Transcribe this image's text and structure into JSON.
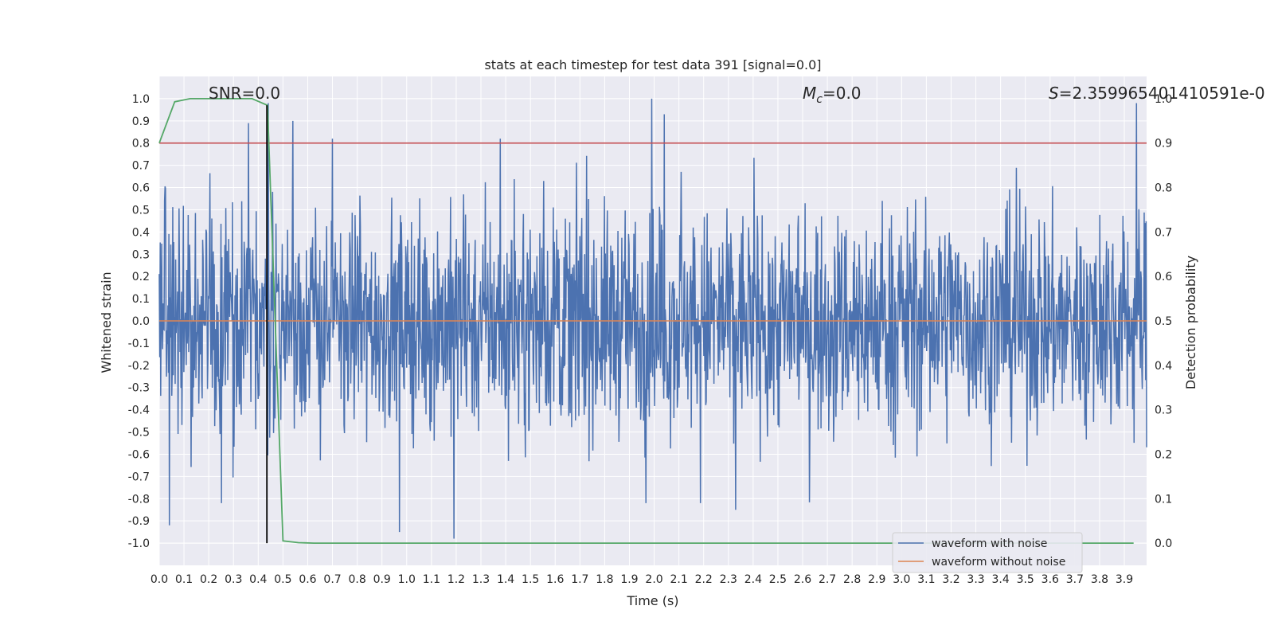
{
  "chart_data": {
    "type": "line",
    "title": "stats at each timestep for test data 391 [signal=0.0]",
    "xlabel": "Time (s)",
    "ylabel_left": "Whitened strain",
    "ylabel_right": "Detection probability",
    "xlim": [
      0.0,
      3.99
    ],
    "ylim_left": [
      -1.1,
      1.1
    ],
    "ylim_right": [
      -0.05,
      1.05
    ],
    "x_ticks": [
      "0.0",
      "0.1",
      "0.2",
      "0.3",
      "0.4",
      "0.5",
      "0.6",
      "0.7",
      "0.8",
      "0.9",
      "1.0",
      "1.1",
      "1.2",
      "1.3",
      "1.4",
      "1.5",
      "1.6",
      "1.7",
      "1.8",
      "1.9",
      "2.0",
      "2.1",
      "2.2",
      "2.3",
      "2.4",
      "2.5",
      "2.6",
      "2.7",
      "2.8",
      "2.9",
      "3.0",
      "3.1",
      "3.2",
      "3.3",
      "3.4",
      "3.5",
      "3.6",
      "3.7",
      "3.8",
      "3.9"
    ],
    "y_ticks_left": [
      "1.0",
      "0.9",
      "0.8",
      "0.7",
      "0.6",
      "0.5",
      "0.4",
      "0.3",
      "0.2",
      "0.1",
      "0.0",
      "-0.1",
      "-0.2",
      "-0.3",
      "-0.4",
      "-0.5",
      "-0.6",
      "-0.7",
      "-0.8",
      "-0.9",
      "-1.0"
    ],
    "y_ticks_right": [
      "1.0",
      "0.9",
      "0.8",
      "0.7",
      "0.6",
      "0.5",
      "0.4",
      "0.3",
      "0.2",
      "0.1",
      "0.0"
    ],
    "annotations": {
      "snr": "SNR=0.0",
      "mc_symbol": "M",
      "mc_sub": "c",
      "mc_value": "=0.0",
      "s_symbol": "S",
      "s_value": "=2.359965401410591e-0"
    },
    "threshold": 0.9,
    "marker_time": 0.435,
    "noisy_waveform": {
      "name": "waveform with noise",
      "color": "#4c72b0",
      "samples": 2048,
      "peaks": [
        {
          "x": 0.36,
          "y": 0.89
        },
        {
          "x": 0.44,
          "y": 0.98
        },
        {
          "x": 0.54,
          "y": 0.9
        },
        {
          "x": 1.99,
          "y": 1.0
        },
        {
          "x": 2.04,
          "y": 0.93
        },
        {
          "x": 3.95,
          "y": 0.98
        },
        {
          "x": 0.97,
          "y": -0.95
        },
        {
          "x": 1.19,
          "y": -0.98
        },
        {
          "x": 2.33,
          "y": -0.85
        },
        {
          "x": 0.04,
          "y": -0.92
        }
      ]
    },
    "clean_waveform": {
      "name": "waveform without noise",
      "color": "#dd8452",
      "value": 0.0
    },
    "detection_probability": {
      "color": "#55a868",
      "x": [
        0.0,
        0.0625,
        0.125,
        0.1875,
        0.25,
        0.3125,
        0.375,
        0.4375,
        0.5,
        0.5625,
        0.625,
        0.6875,
        0.75,
        0.8125,
        0.875,
        0.9375,
        1.0,
        1.25,
        1.5,
        1.75,
        2.0,
        2.25,
        2.5,
        2.75,
        3.0,
        3.25,
        3.5,
        3.75,
        3.9375
      ],
      "y": [
        0.9,
        0.993,
        1.0,
        1.0,
        1.0,
        1.0,
        1.0,
        0.985,
        0.005,
        0.001,
        0.0,
        0.0,
        0.0,
        0.0,
        0.0,
        0.0,
        0.0,
        0.0,
        0.0,
        0.0,
        0.0,
        0.0,
        0.0,
        0.0,
        0.0,
        0.0,
        0.0,
        0.0,
        0.0
      ]
    },
    "threshold_color": "#c44e52",
    "marker_color": "#000000",
    "legend": {
      "position": "lower right",
      "entries": [
        {
          "label": "waveform with noise",
          "color": "#4c72b0"
        },
        {
          "label": "waveform without noise",
          "color": "#dd8452"
        }
      ]
    },
    "grid": true
  }
}
